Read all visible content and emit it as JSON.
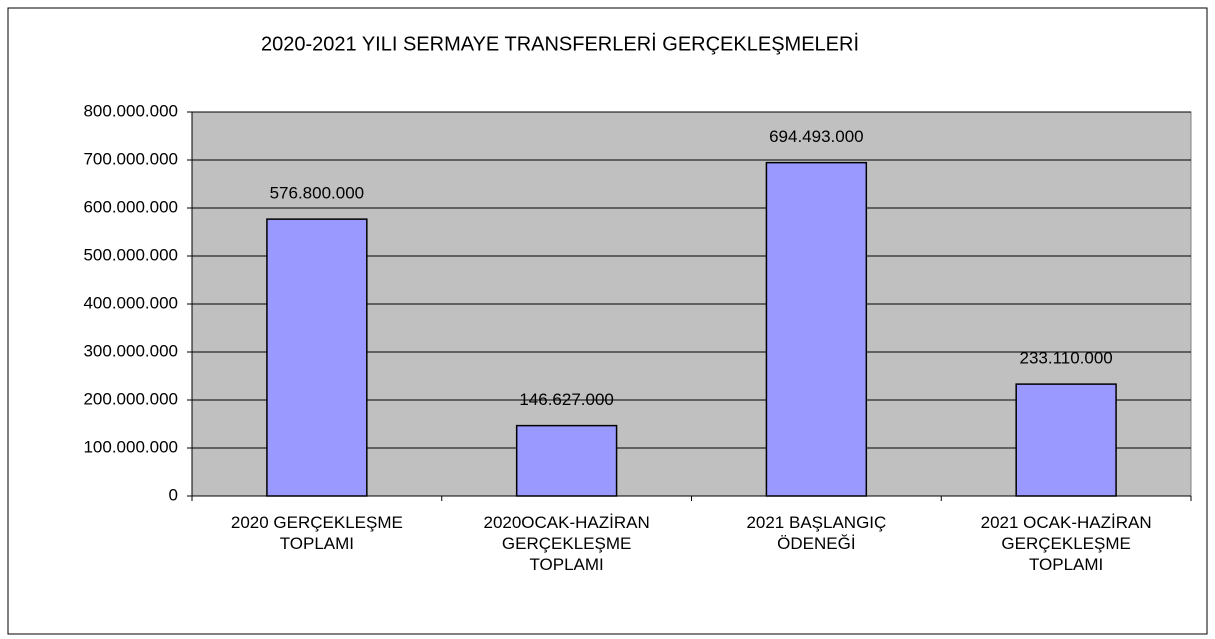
{
  "chart_data": {
    "type": "bar",
    "title": "2020-2021 YILI SERMAYE TRANSFERLERİ  GERÇEKLEŞMELERİ",
    "categories": [
      "2020 GERÇEKLEŞME TOPLAMI",
      "2020OCAK-HAZİRAN GERÇEKLEŞME TOPLAMI",
      "2021 BAŞLANGIÇ ÖDENEĞİ",
      "2021 OCAK-HAZİRAN GERÇEKLEŞME TOPLAMI"
    ],
    "values": [
      576800000,
      146627000,
      694493000,
      233110000
    ],
    "value_labels": [
      "576.800.000",
      "146.627.000",
      "694.493.000",
      "233.110.000"
    ],
    "color": "#9999ff",
    "ylim": [
      0,
      800000000
    ],
    "yticks": [
      0,
      {
        "value": 100000000,
        "label": "100.000.000"
      },
      {
        "value": 200000000,
        "label": "200.000.000"
      },
      {
        "value": 300000000,
        "label": "300.000.000"
      },
      {
        "value": 400000000,
        "label": "400.000.000"
      },
      {
        "value": 500000000,
        "label": "500.000.000"
      },
      {
        "value": 600000000,
        "label": "600.000.000"
      },
      {
        "value": 700000000,
        "label": "700.000.000"
      },
      {
        "value": 800000000,
        "label": "800.000.000"
      }
    ],
    "grid": true
  }
}
